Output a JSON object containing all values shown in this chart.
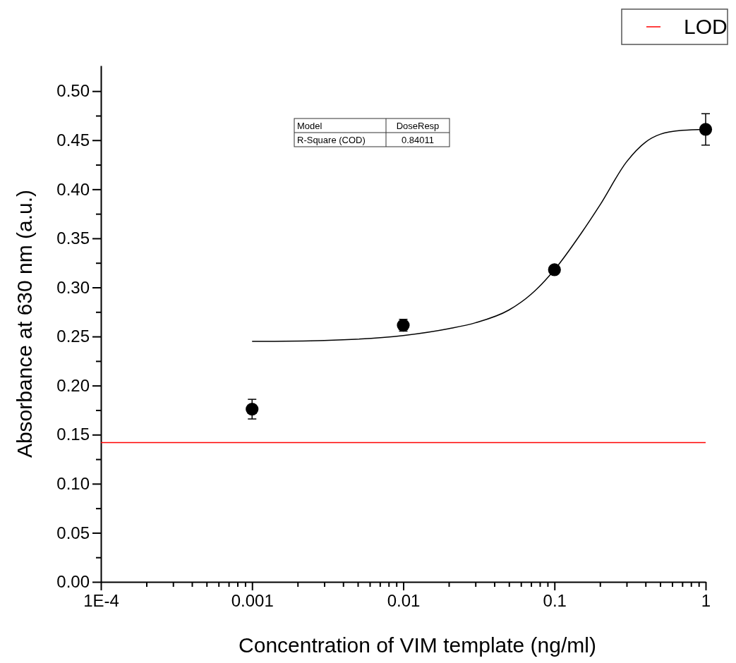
{
  "chart_data": {
    "type": "scatter",
    "xlabel": "Concentration of VIM template (ng/ml)",
    "ylabel": "Absorbance at 630 nm (a.u.)",
    "log": "x",
    "xlim": [
      0.0001,
      1
    ],
    "ylim": [
      0,
      0.526
    ],
    "xticks": [
      {
        "value": 0.0001,
        "label": "1E-4"
      },
      {
        "value": 0.0002,
        "label": null
      },
      {
        "value": 0.0003,
        "label": null
      },
      {
        "value": 0.0004,
        "label": null
      },
      {
        "value": 0.0005,
        "label": null
      },
      {
        "value": 0.0006,
        "label": null
      },
      {
        "value": 0.0007,
        "label": null
      },
      {
        "value": 0.0008,
        "label": null
      },
      {
        "value": 0.0009,
        "label": null
      },
      0.001,
      {
        "value": 0.002,
        "label": null
      },
      {
        "value": 0.003,
        "label": null
      },
      {
        "value": 0.004,
        "label": null
      },
      {
        "value": 0.005,
        "label": null
      },
      {
        "value": 0.006,
        "label": null
      },
      {
        "value": 0.007,
        "label": null
      },
      {
        "value": 0.008,
        "label": null
      },
      {
        "value": 0.009,
        "label": null
      },
      0.01,
      {
        "value": 0.02,
        "label": null
      },
      {
        "value": 0.03,
        "label": null
      },
      {
        "value": 0.04,
        "label": null
      },
      {
        "value": 0.05,
        "label": null
      },
      {
        "value": 0.06,
        "label": null
      },
      {
        "value": 0.07,
        "label": null
      },
      {
        "value": 0.08,
        "label": null
      },
      {
        "value": 0.09,
        "label": null
      },
      0.1,
      {
        "value": 0.2,
        "label": null
      },
      {
        "value": 0.3,
        "label": null
      },
      {
        "value": 0.4,
        "label": null
      },
      {
        "value": 0.5,
        "label": null
      },
      {
        "value": 0.6,
        "label": null
      },
      {
        "value": 0.7,
        "label": null
      },
      {
        "value": 0.8,
        "label": null
      },
      {
        "value": 0.9,
        "label": null
      },
      1
    ],
    "yticks": [
      {
        "value": 0,
        "label": "0.00"
      },
      {
        "value": 0.025,
        "label": null
      },
      {
        "value": 0.05,
        "label": "0.05"
      },
      {
        "value": 0.075,
        "label": null
      },
      {
        "value": 0.1,
        "label": "0.10"
      },
      {
        "value": 0.125,
        "label": null
      },
      {
        "value": 0.15,
        "label": "0.15"
      },
      {
        "value": 0.175,
        "label": null
      },
      {
        "value": 0.2,
        "label": "0.20"
      },
      {
        "value": 0.225,
        "label": null
      },
      {
        "value": 0.25,
        "label": "0.25"
      },
      {
        "value": 0.275,
        "label": null
      },
      {
        "value": 0.3,
        "label": "0.30"
      },
      {
        "value": 0.325,
        "label": null
      },
      {
        "value": 0.35,
        "label": "0.35"
      },
      {
        "value": 0.375,
        "label": null
      },
      {
        "value": 0.4,
        "label": "0.40"
      },
      {
        "value": 0.425,
        "label": null
      },
      {
        "value": 0.45,
        "label": "0.45"
      },
      {
        "value": 0.475,
        "label": null
      },
      {
        "value": 0.5,
        "label": "0.50"
      }
    ],
    "series": [
      {
        "color": "#000000",
        "marker": "circle",
        "x": [
          0.001,
          0.01,
          0.1,
          1
        ],
        "values": [
          0.176,
          0.2615,
          0.318,
          0.461
        ],
        "errors": [
          0.01,
          0.006,
          null,
          0.016
        ]
      },
      {
        "type": "line",
        "color": "#000000",
        "marker": "none",
        "line_style": "solid",
        "x": [
          0.001,
          0.003,
          0.01,
          0.02,
          0.03,
          0.05,
          0.07,
          0.1,
          0.15,
          0.2,
          0.3,
          0.4,
          0.5,
          0.7,
          1
        ],
        "values": [
          0.245,
          0.246,
          0.251,
          0.258,
          0.264,
          0.277,
          0.293,
          0.318,
          0.355,
          0.384,
          0.428,
          0.448,
          0.456,
          0.46,
          0.461
        ]
      }
    ],
    "ref_lines": [
      {
        "axis": "y",
        "value": 0.142,
        "label": "LOD",
        "color": "#ff0000"
      }
    ],
    "legend": "top right",
    "grid": false,
    "annotations": [
      "Model",
      "DoseResp",
      "R-Square (COD)",
      "0.84011"
    ]
  }
}
